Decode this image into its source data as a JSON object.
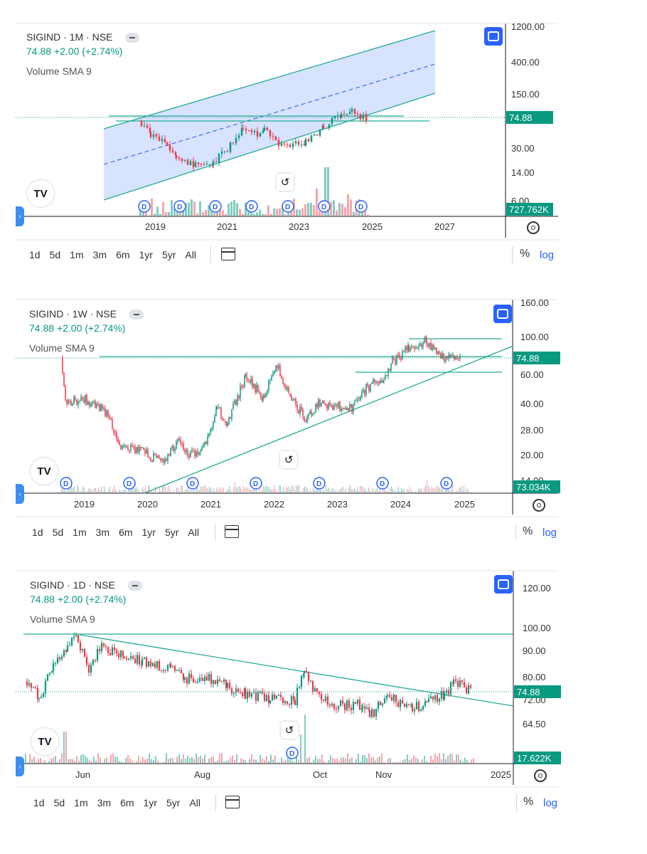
{
  "chart_data": [
    {
      "type": "candlestick",
      "symbol": "SIGIND",
      "interval": "1M",
      "exchange": "NSE",
      "last_price": "74.88",
      "change": "+2.00",
      "change_pct": "(+2.74%)",
      "indicator": "Volume SMA 9",
      "volume_last": "727.762K",
      "scale": "log",
      "y_ticks": [
        "1200.00",
        "400.00",
        "150.00",
        "74.88",
        "30.00",
        "14.00",
        "6.00"
      ],
      "x_ticks": [
        "2019",
        "2021",
        "2023",
        "2025",
        "2027"
      ],
      "drawings": [
        "ascending parallel channel",
        "horizontal support/resistance lines near 74.88"
      ]
    },
    {
      "type": "candlestick",
      "symbol": "SIGIND",
      "interval": "1W",
      "exchange": "NSE",
      "last_price": "74.88",
      "change": "+2.00",
      "change_pct": "(+2.74%)",
      "indicator": "Volume SMA 9",
      "volume_last": "73.034K",
      "scale": "log",
      "y_ticks": [
        "160.00",
        "100.00",
        "74.88",
        "60.00",
        "40.00",
        "28.00",
        "20.00",
        "14.00"
      ],
      "x_ticks": [
        "2019",
        "2020",
        "2021",
        "2022",
        "2023",
        "2024",
        "2025"
      ],
      "drawings": [
        "ascending trendline",
        "horizontal lines at ~98, ~75, ~63"
      ]
    },
    {
      "type": "candlestick",
      "symbol": "SIGIND",
      "interval": "1D",
      "exchange": "NSE",
      "last_price": "74.88",
      "change": "+2.00",
      "change_pct": "(+2.74%)",
      "indicator": "Volume SMA 9",
      "volume_last": "17.622K",
      "scale": "log",
      "y_ticks": [
        "120.00",
        "100.00",
        "90.00",
        "80.00",
        "74.88",
        "72.00",
        "64.50"
      ],
      "x_ticks": [
        "Jun",
        "Aug",
        "Oct",
        "Nov",
        "2025"
      ],
      "drawings": [
        "descending trendline",
        "horizontal line at ~97"
      ]
    }
  ],
  "colors": {
    "up": "#089981",
    "down": "#f23645",
    "channel": "#2962ff",
    "line": "#22ab94",
    "button": "#2962ff"
  },
  "ui": {
    "ranges": [
      "1d",
      "5d",
      "1m",
      "3m",
      "6m",
      "1yr",
      "5yr",
      "All"
    ],
    "percent": "%",
    "log": "log",
    "dividend_marker": "D",
    "logo": "TV",
    "reset_icon": "↺"
  }
}
